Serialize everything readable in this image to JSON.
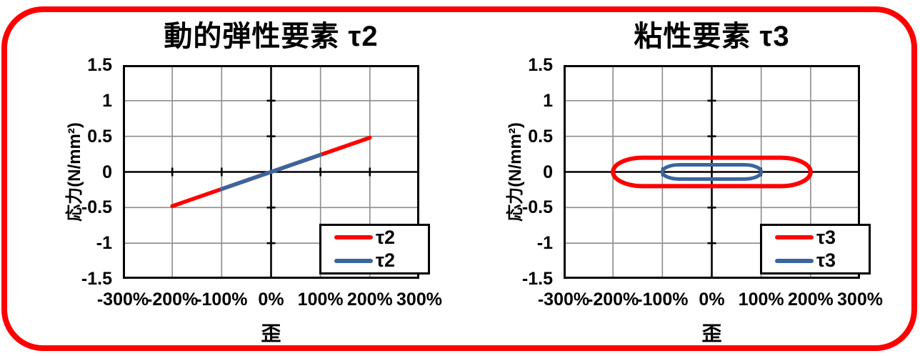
{
  "frame": {
    "border_color": "#FF0000",
    "background": "#FFFFFF"
  },
  "colors": {
    "gridline": "#8C8C8C",
    "axis": "#000000",
    "plot_border": "#000000",
    "series_red": "#FF0000",
    "series_blue": "#3A659E"
  },
  "chart_data": [
    {
      "type": "line",
      "title": "動的弾性要素 τ2",
      "xlabel": "歪",
      "ylabel": "応力(N/mm²)",
      "xlim": [
        -300,
        300
      ],
      "ylim": [
        -1.5,
        1.5
      ],
      "grid": true,
      "legend_position": "bottom-right",
      "x_tick_values": [
        -300,
        -200,
        -100,
        0,
        100,
        200,
        300
      ],
      "x_tick_labels": [
        "-300%",
        "-200%",
        "-100%",
        "0%",
        "100%",
        "200%",
        "300%"
      ],
      "y_tick_values": [
        1.5,
        1,
        0.5,
        0,
        -0.5,
        -1,
        -1.5
      ],
      "y_tick_labels": [
        "1.5",
        "1",
        "0.5",
        "0",
        "-0.5",
        "-1",
        "-1.5"
      ],
      "series": [
        {
          "name": "τ2",
          "color": "#FF0000",
          "shape": "segment",
          "points": [
            [
              -200,
              -0.48
            ],
            [
              200,
              0.48
            ]
          ]
        },
        {
          "name": "τ2",
          "color": "#3A659E",
          "shape": "segment",
          "points": [
            [
              -100,
              -0.24
            ],
            [
              100,
              0.24
            ]
          ]
        }
      ]
    },
    {
      "type": "line",
      "title": "粘性要素 τ3",
      "xlabel": "歪",
      "ylabel": "応力(N/mm²)",
      "xlim": [
        -300,
        300
      ],
      "ylim": [
        -1.5,
        1.5
      ],
      "grid": true,
      "legend_position": "bottom-right",
      "x_tick_values": [
        -300,
        -200,
        -100,
        0,
        100,
        200,
        300
      ],
      "x_tick_labels": [
        "-300%",
        "-200%",
        "-100%",
        "0%",
        "100%",
        "200%",
        "300%"
      ],
      "y_tick_values": [
        1.5,
        1,
        0.5,
        0,
        -0.5,
        -1,
        -1.5
      ],
      "y_tick_labels": [
        "1.5",
        "1",
        "0.5",
        "0",
        "-0.5",
        "-1",
        "-1.5"
      ],
      "series": [
        {
          "name": "τ3",
          "color": "#FF0000",
          "shape": "loop",
          "x_amplitude": 200,
          "y_amplitude": 0.2
        },
        {
          "name": "τ3",
          "color": "#3A659E",
          "shape": "loop",
          "x_amplitude": 100,
          "y_amplitude": 0.1
        }
      ]
    }
  ]
}
